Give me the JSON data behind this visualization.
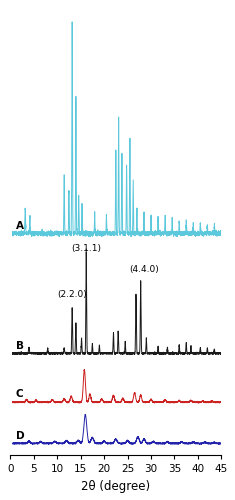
{
  "title": "",
  "xlabel": "2θ (degree)",
  "xlim": [
    0,
    45
  ],
  "xticks": [
    0,
    5,
    10,
    15,
    20,
    25,
    30,
    35,
    40,
    45
  ],
  "colors": {
    "A": "#5BC8DC",
    "B": "#1a1a1a",
    "C": "#CC2222",
    "D": "#2222AA"
  },
  "background_color": "#ffffff",
  "linewidth": 0.7
}
